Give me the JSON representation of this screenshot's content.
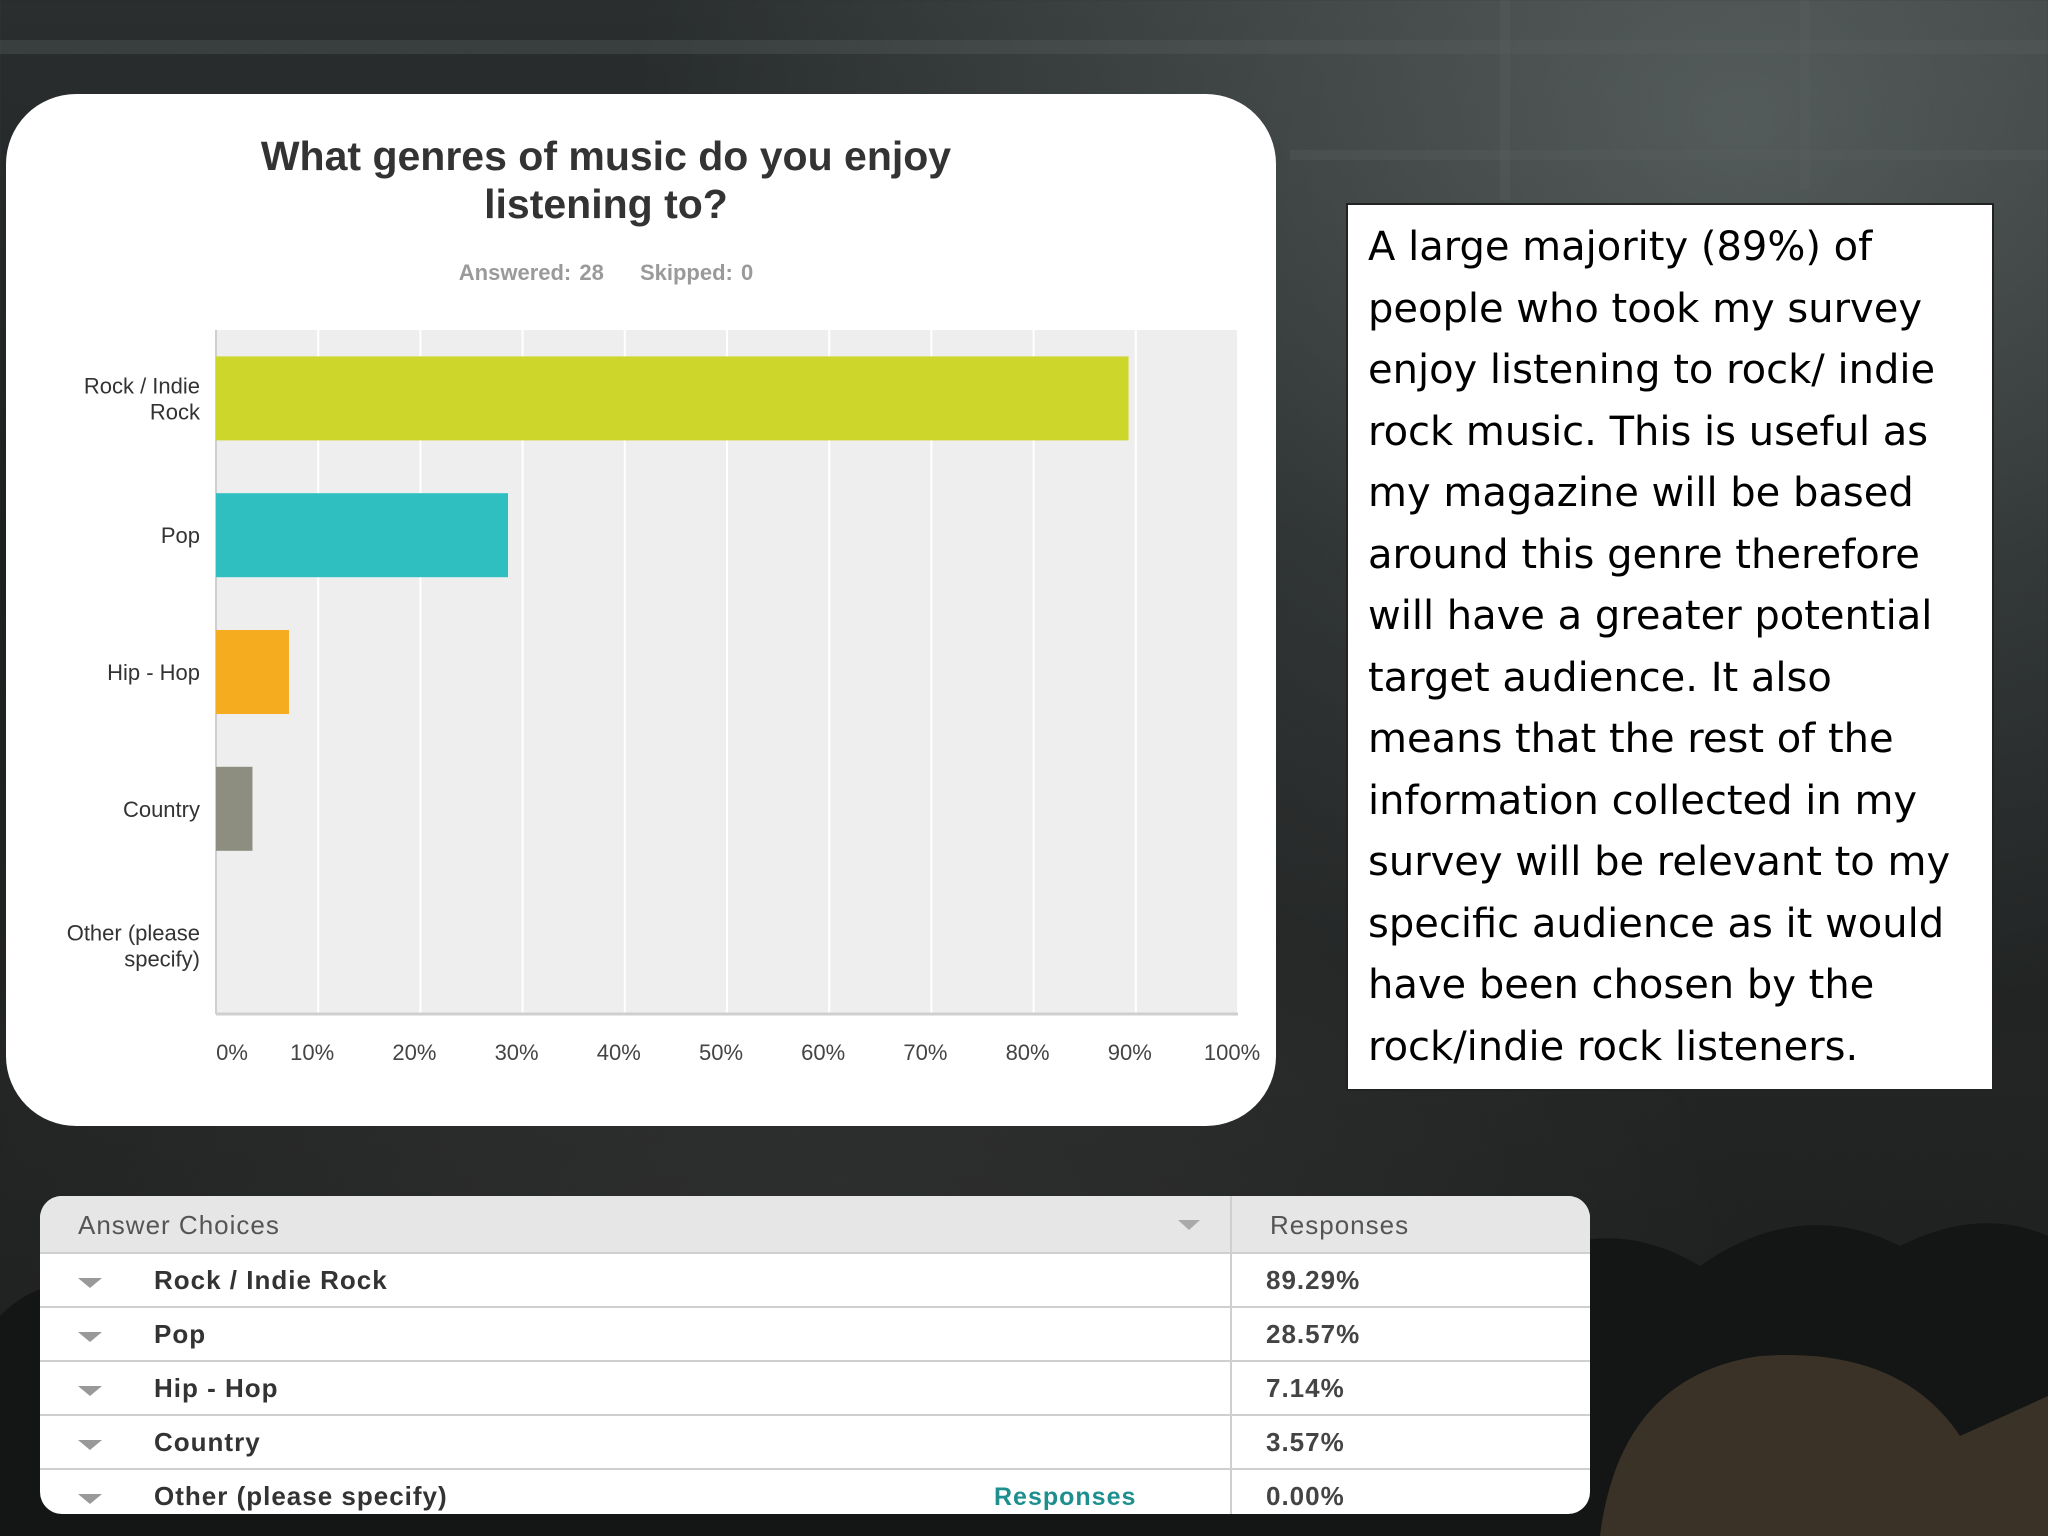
{
  "chart": {
    "title_line1": "What genres of music do you enjoy",
    "title_line2": "listening to?",
    "answered": "Answered: 28",
    "skipped": "Skipped: 0"
  },
  "chart_data": {
    "type": "bar",
    "orientation": "horizontal",
    "title": "What genres of music do you enjoy listening to?",
    "categories": [
      "Rock / Indie Rock",
      "Pop",
      "Hip - Hop",
      "Country",
      "Other (please specify)"
    ],
    "category_label_lines": [
      [
        "Rock / Indie",
        "Rock"
      ],
      [
        "Pop"
      ],
      [
        "Hip - Hop"
      ],
      [
        "Country"
      ],
      [
        "Other (please",
        "specify)"
      ]
    ],
    "values": [
      89.29,
      28.57,
      7.14,
      3.57,
      0.0
    ],
    "colors": [
      "#cdd62b",
      "#2fbfc1",
      "#f5ac1f",
      "#8e8e80",
      "#cccccc"
    ],
    "xlim": [
      0,
      100
    ],
    "xticks": [
      "0%",
      "10%",
      "20%",
      "30%",
      "40%",
      "50%",
      "60%",
      "70%",
      "80%",
      "90%",
      "100%"
    ],
    "grid": true
  },
  "note": {
    "text": "A large majority (89%) of people who took my survey enjoy listening to rock/ indie rock music. This is useful as my magazine will be based around this genre therefore will have a greater potential target audience. It also means that the rest of the information collected in my survey will be relevant  to my specific audience as it would have been chosen by the rock/indie rock listeners."
  },
  "table": {
    "header_choices": "Answer Choices",
    "header_responses": "Responses",
    "rows": [
      {
        "label": "Rock / Indie Rock",
        "value": "89.29%"
      },
      {
        "label": "Pop",
        "value": "28.57%"
      },
      {
        "label": "Hip - Hop",
        "value": "7.14%"
      },
      {
        "label": "Country",
        "value": "3.57%"
      },
      {
        "label": "Other (please specify)",
        "value": "0.00%",
        "link": "Responses"
      }
    ]
  }
}
